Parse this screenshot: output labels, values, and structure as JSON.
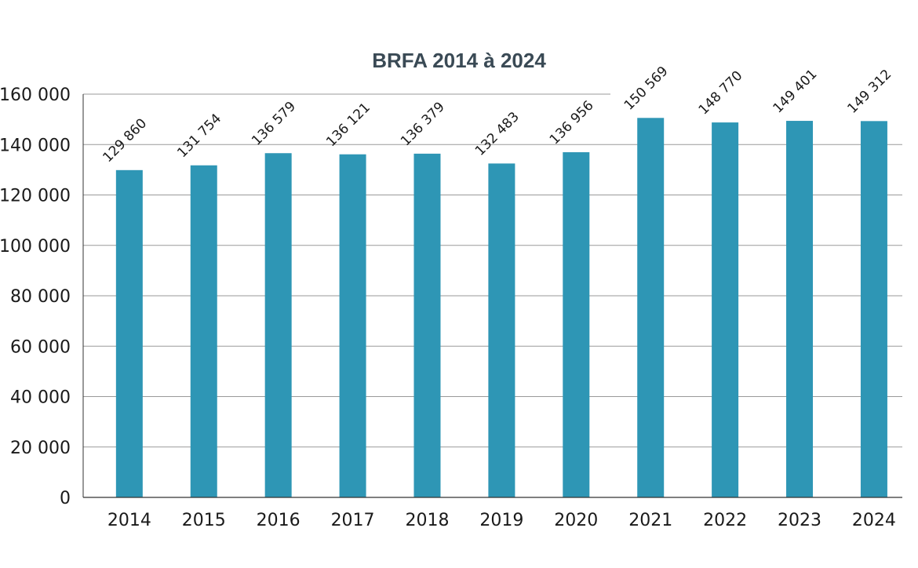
{
  "chart_data": {
    "type": "bar",
    "title": "BRFA 2014 à 2024",
    "xlabel": "",
    "ylabel": "",
    "categories": [
      "2014",
      "2015",
      "2016",
      "2017",
      "2018",
      "2019",
      "2020",
      "2021",
      "2022",
      "2023",
      "2024"
    ],
    "values": [
      129860,
      131754,
      136579,
      136121,
      136379,
      132483,
      136956,
      150569,
      148770,
      149401,
      149312
    ],
    "value_labels": [
      "129 860",
      "131 754",
      "136 579",
      "136 121",
      "136 379",
      "132 483",
      "136 956",
      "150 569",
      "148 770",
      "149 401",
      "149 312"
    ],
    "ylim": [
      0,
      160000
    ],
    "yticks": [
      0,
      20000,
      40000,
      60000,
      80000,
      100000,
      120000,
      140000,
      160000
    ],
    "ytick_labels": [
      "0",
      "20 000",
      "40 000",
      "60 000",
      "80 000",
      "100 000",
      "120 000",
      "140 000",
      "160 000"
    ],
    "grid": true,
    "legend": "none",
    "colors": {
      "bar": "#2e96b5",
      "grid": "#9a9a9a",
      "axis": "#333333"
    }
  }
}
